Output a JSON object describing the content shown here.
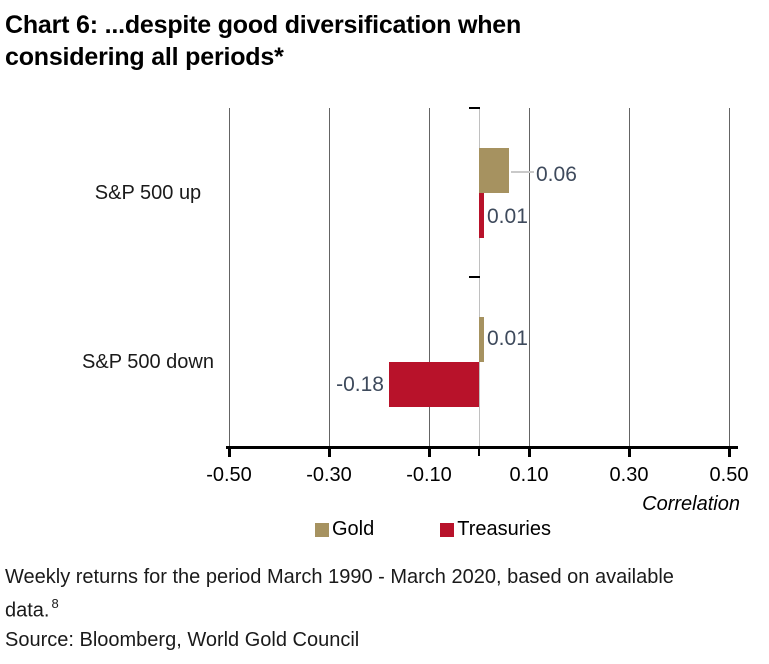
{
  "title": {
    "line1": "Chart 6: ...despite good diversification when",
    "line2": "considering all periods*"
  },
  "chart_data": {
    "type": "bar",
    "orientation": "horizontal",
    "categories": [
      "S&P 500 up",
      "S&P 500 down"
    ],
    "series": [
      {
        "name": "Gold",
        "color": "#A69260",
        "values": [
          0.06,
          0.01
        ]
      },
      {
        "name": "Treasuries",
        "color": "#B8122A",
        "values": [
          0.01,
          -0.18
        ]
      }
    ],
    "value_labels": [
      [
        "0.06",
        "0.01"
      ],
      [
        "0.01",
        "-0.18"
      ]
    ],
    "xlabel": "Correlation",
    "xlim": [
      -0.5,
      0.5
    ],
    "xticks": [
      -0.5,
      -0.3,
      -0.1,
      0.1,
      0.3,
      0.5
    ],
    "xtick_labels": [
      "-0.50",
      "-0.30",
      "-0.10",
      "0.10",
      "0.30",
      "0.50"
    ],
    "grid": "vertical",
    "legend_position": "bottom",
    "colors": {
      "gridline": "#646464",
      "zero_line": "#C0C0C0",
      "axis": "#000000",
      "data_label": "#3E4A5C",
      "leader_line": "#C9C9C9",
      "category_label": "#1a1a1a"
    }
  },
  "footnote": {
    "line1": "Weekly returns for the period March 1990 - March 2020, based on available",
    "line2": "data.",
    "superscript": "8"
  },
  "source": "Source: Bloomberg, World Gold Council"
}
